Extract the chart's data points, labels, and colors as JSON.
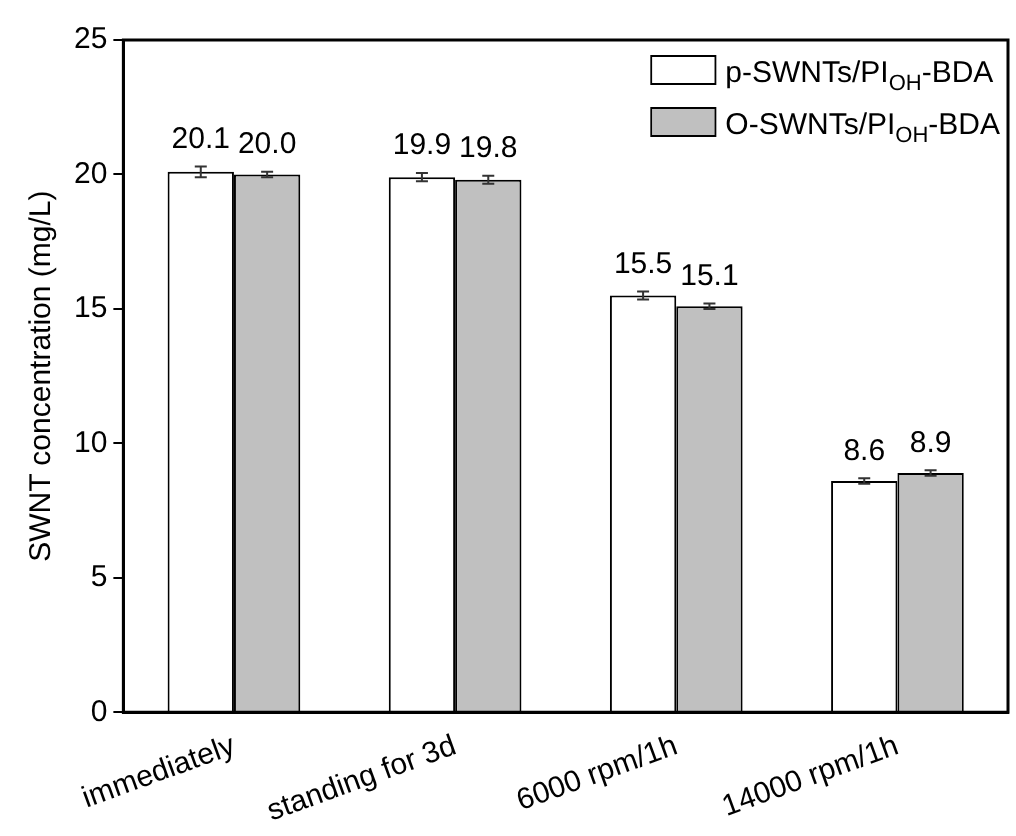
{
  "chart_data": {
    "type": "bar",
    "ylabel": "SWNT concentration (mg/L)",
    "categories": [
      "immediately",
      "standing for 3d",
      "6000 rpm/1h",
      "14000 rpm/1h"
    ],
    "series": [
      {
        "name": "p-SWNTs/PI$_{OH}$-BDA",
        "color": "#ffffff",
        "values": [
          20.1,
          19.9,
          15.5,
          8.6
        ],
        "errors": [
          0.2,
          0.15,
          0.15,
          0.1
        ],
        "value_labels": [
          "20.1",
          "19.9",
          "15.5",
          "8.6"
        ]
      },
      {
        "name": "O-SWNTs/PI$_{OH}$-BDA",
        "color": "#c0c0c0",
        "values": [
          20.0,
          19.8,
          15.1,
          8.9
        ],
        "errors": [
          0.1,
          0.15,
          0.1,
          0.1
        ],
        "value_labels": [
          "20.0",
          "19.8",
          "15.1",
          "8.9"
        ]
      }
    ],
    "ylim": [
      0,
      25
    ],
    "yticks": [
      0,
      5,
      10,
      15,
      20,
      25
    ],
    "legend": "top right"
  }
}
